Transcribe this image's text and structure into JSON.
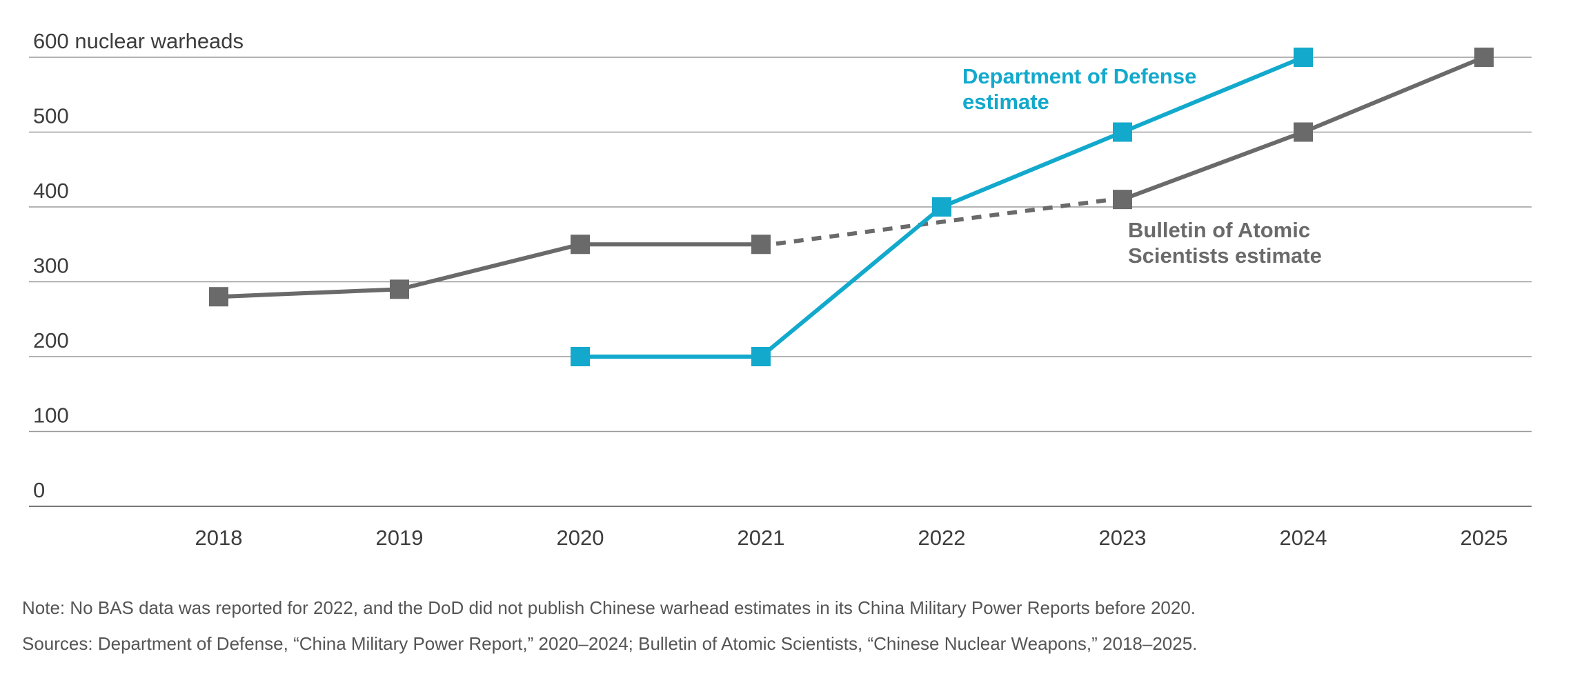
{
  "chart_data": {
    "type": "line",
    "title": "",
    "xlabel": "",
    "ylabel": "nuclear warheads",
    "x": [
      2018,
      2019,
      2020,
      2021,
      2022,
      2023,
      2024,
      2025
    ],
    "ylim": [
      0,
      600
    ],
    "yticks": [
      0,
      100,
      200,
      300,
      400,
      500,
      600
    ],
    "ytick_labels": [
      "0",
      "100",
      "200",
      "300",
      "400",
      "500",
      "600 nuclear warheads"
    ],
    "xtick_labels": [
      "2018",
      "2019",
      "2020",
      "2021",
      "2022",
      "2023",
      "2024",
      "2025"
    ],
    "grid": true,
    "series": [
      {
        "name": "Bulletin of Atomic Scientists estimate",
        "label_lines": [
          "Bulletin of Atomic",
          "Scientists estimate"
        ],
        "color": "#6a6a6a",
        "values": [
          280,
          290,
          350,
          350,
          null,
          410,
          500,
          600
        ],
        "gap_bridged": [
          2021,
          2023
        ]
      },
      {
        "name": "Department of Defense estimate",
        "label_lines": [
          "Department of Defense",
          "estimate"
        ],
        "color": "#12a9cc",
        "values": [
          null,
          null,
          200,
          200,
          400,
          500,
          600,
          null
        ]
      }
    ]
  },
  "notes": {
    "note": "Note: No BAS data was reported for 2022, and the DoD did not publish Chinese warhead estimates in its China Military Power Reports before 2020.",
    "sources": "Sources: Department of Defense, “China Military Power Report,” 2020–2024; Bulletin of Atomic Scientists, “Chinese Nuclear Weapons,” 2018–2025."
  },
  "colors": {
    "gridline": "#9a9a9a",
    "axis": "#777777",
    "text": "#3d3d3d"
  }
}
